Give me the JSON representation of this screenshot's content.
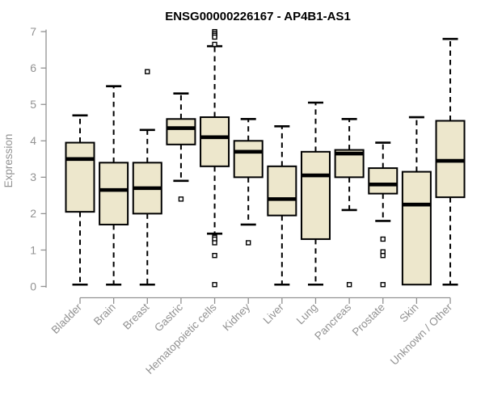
{
  "chart_data": {
    "type": "boxplot",
    "title": "ENSG00000226167 - AP4B1-AS1",
    "xlabel": "",
    "ylabel": "Expression",
    "ylim": [
      0,
      7
    ],
    "yticks": [
      0,
      1,
      2,
      3,
      4,
      5,
      6,
      7
    ],
    "grid": false,
    "legend": null,
    "categories": [
      "Bladder",
      "Brain",
      "Breast",
      "Gastric",
      "Hematopoietic cells",
      "Kidney",
      "Liver",
      "Lung",
      "Pancreas",
      "Prostate",
      "Skin",
      "Unknown / Other"
    ],
    "series": [
      {
        "label": "Bladder",
        "whislo": 0.05,
        "q1": 2.05,
        "med": 3.5,
        "q3": 3.95,
        "whishi": 4.7,
        "outliers": []
      },
      {
        "label": "Brain",
        "whislo": 0.05,
        "q1": 1.7,
        "med": 2.65,
        "q3": 3.4,
        "whishi": 5.5,
        "outliers": []
      },
      {
        "label": "Breast",
        "whislo": 0.05,
        "q1": 2.0,
        "med": 2.7,
        "q3": 3.4,
        "whishi": 4.3,
        "outliers": [
          5.9
        ]
      },
      {
        "label": "Gastric",
        "whislo": 2.9,
        "q1": 3.9,
        "med": 4.35,
        "q3": 4.6,
        "whishi": 5.3,
        "outliers": [
          2.4
        ]
      },
      {
        "label": "Hematopoietic cells",
        "whislo": 1.45,
        "q1": 3.3,
        "med": 4.1,
        "q3": 4.65,
        "whishi": 6.6,
        "outliers": [
          7.0,
          6.95,
          6.9,
          6.85,
          6.65,
          1.35,
          1.3,
          1.2,
          0.85,
          0.05
        ]
      },
      {
        "label": "Kidney",
        "whislo": 1.7,
        "q1": 3.0,
        "med": 3.7,
        "q3": 4.0,
        "whishi": 4.6,
        "outliers": [
          1.2
        ]
      },
      {
        "label": "Liver",
        "whislo": 0.05,
        "q1": 1.95,
        "med": 2.4,
        "q3": 3.3,
        "whishi": 4.4,
        "outliers": []
      },
      {
        "label": "Lung",
        "whislo": 0.05,
        "q1": 1.3,
        "med": 3.05,
        "q3": 3.7,
        "whishi": 5.05,
        "outliers": []
      },
      {
        "label": "Pancreas",
        "whislo": 2.1,
        "q1": 3.0,
        "med": 3.65,
        "q3": 3.75,
        "whishi": 4.6,
        "outliers": [
          0.05
        ]
      },
      {
        "label": "Prostate",
        "whislo": 1.8,
        "q1": 2.55,
        "med": 2.8,
        "q3": 3.25,
        "whishi": 3.95,
        "outliers": [
          1.3,
          0.95,
          0.85,
          0.05
        ]
      },
      {
        "label": "Skin",
        "whislo": 0.05,
        "q1": 0.05,
        "med": 2.25,
        "q3": 3.15,
        "whishi": 4.65,
        "outliers": []
      },
      {
        "label": "Unknown / Other",
        "whislo": 0.05,
        "q1": 2.45,
        "med": 3.45,
        "q3": 4.55,
        "whishi": 6.8,
        "outliers": []
      }
    ],
    "colors": {
      "box_fill": "#EDE7CC",
      "box_border": "#000000",
      "median": "#000000",
      "whisker": "#000000",
      "axis": "#929292",
      "tick_label": "#929292",
      "title": "#000000",
      "background": "#FFFFFF"
    }
  }
}
